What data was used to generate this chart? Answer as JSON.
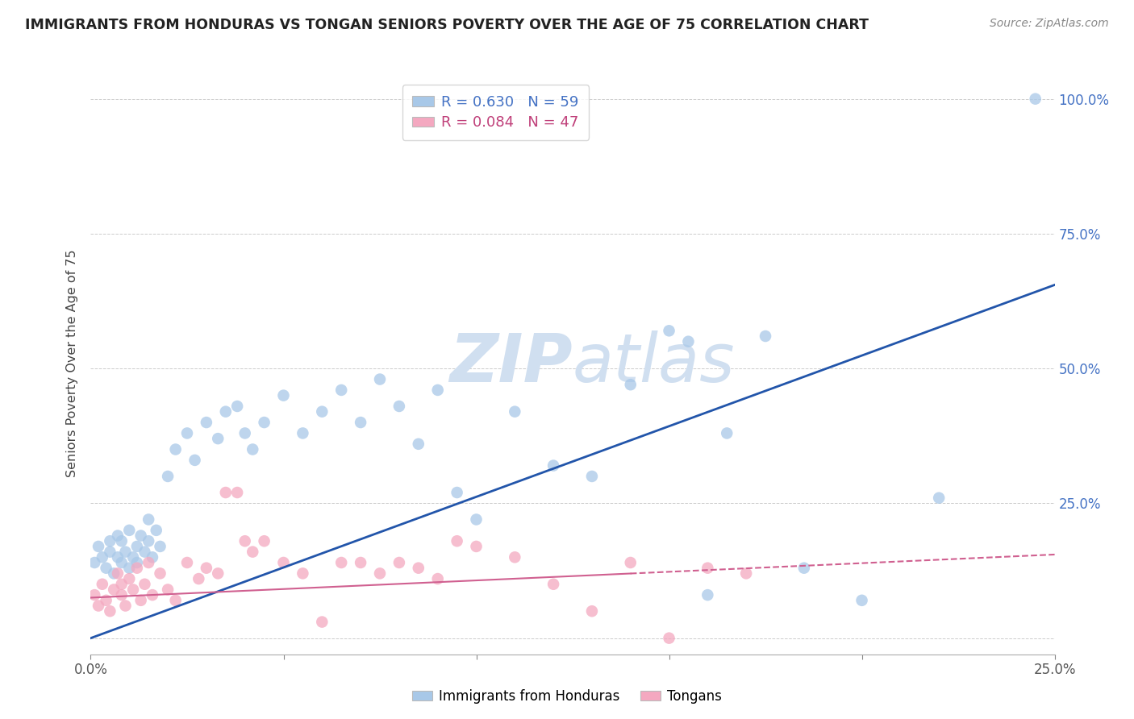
{
  "title": "IMMIGRANTS FROM HONDURAS VS TONGAN SENIORS POVERTY OVER THE AGE OF 75 CORRELATION CHART",
  "source": "Source: ZipAtlas.com",
  "ylabel": "Seniors Poverty Over the Age of 75",
  "xlim": [
    0.0,
    0.25
  ],
  "ylim": [
    -0.03,
    1.05
  ],
  "legend1_label": "Immigrants from Honduras",
  "legend2_label": "Tongans",
  "R1": 0.63,
  "N1": 59,
  "R2": 0.084,
  "N2": 47,
  "blue_color": "#a8c8e8",
  "pink_color": "#f4a8c0",
  "blue_line_color": "#2255aa",
  "pink_line_color": "#d06090",
  "watermark_color": "#d0dff0",
  "blue_line_x0": 0.0,
  "blue_line_y0": 0.0,
  "blue_line_x1": 0.25,
  "blue_line_y1": 0.655,
  "pink_line_x0": 0.0,
  "pink_line_y0": 0.075,
  "pink_line_x1": 0.25,
  "pink_line_y1": 0.155,
  "blue_scatter_x": [
    0.001,
    0.002,
    0.003,
    0.004,
    0.005,
    0.005,
    0.006,
    0.007,
    0.007,
    0.008,
    0.008,
    0.009,
    0.01,
    0.01,
    0.011,
    0.012,
    0.012,
    0.013,
    0.014,
    0.015,
    0.015,
    0.016,
    0.017,
    0.018,
    0.02,
    0.022,
    0.025,
    0.027,
    0.03,
    0.033,
    0.035,
    0.038,
    0.04,
    0.042,
    0.045,
    0.05,
    0.055,
    0.06,
    0.065,
    0.07,
    0.075,
    0.08,
    0.085,
    0.09,
    0.095,
    0.1,
    0.11,
    0.12,
    0.13,
    0.14,
    0.15,
    0.155,
    0.16,
    0.165,
    0.175,
    0.185,
    0.2,
    0.22,
    0.245
  ],
  "blue_scatter_y": [
    0.14,
    0.17,
    0.15,
    0.13,
    0.16,
    0.18,
    0.12,
    0.15,
    0.19,
    0.14,
    0.18,
    0.16,
    0.13,
    0.2,
    0.15,
    0.17,
    0.14,
    0.19,
    0.16,
    0.18,
    0.22,
    0.15,
    0.2,
    0.17,
    0.3,
    0.35,
    0.38,
    0.33,
    0.4,
    0.37,
    0.42,
    0.43,
    0.38,
    0.35,
    0.4,
    0.45,
    0.38,
    0.42,
    0.46,
    0.4,
    0.48,
    0.43,
    0.36,
    0.46,
    0.27,
    0.22,
    0.42,
    0.32,
    0.3,
    0.47,
    0.57,
    0.55,
    0.08,
    0.38,
    0.56,
    0.13,
    0.07,
    0.26,
    1.0
  ],
  "pink_scatter_x": [
    0.001,
    0.002,
    0.003,
    0.004,
    0.005,
    0.006,
    0.007,
    0.008,
    0.008,
    0.009,
    0.01,
    0.011,
    0.012,
    0.013,
    0.014,
    0.015,
    0.016,
    0.018,
    0.02,
    0.022,
    0.025,
    0.028,
    0.03,
    0.033,
    0.035,
    0.038,
    0.04,
    0.042,
    0.045,
    0.05,
    0.055,
    0.06,
    0.065,
    0.07,
    0.075,
    0.08,
    0.085,
    0.09,
    0.095,
    0.1,
    0.11,
    0.12,
    0.13,
    0.14,
    0.15,
    0.16,
    0.17
  ],
  "pink_scatter_y": [
    0.08,
    0.06,
    0.1,
    0.07,
    0.05,
    0.09,
    0.12,
    0.08,
    0.1,
    0.06,
    0.11,
    0.09,
    0.13,
    0.07,
    0.1,
    0.14,
    0.08,
    0.12,
    0.09,
    0.07,
    0.14,
    0.11,
    0.13,
    0.12,
    0.27,
    0.27,
    0.18,
    0.16,
    0.18,
    0.14,
    0.12,
    0.03,
    0.14,
    0.14,
    0.12,
    0.14,
    0.13,
    0.11,
    0.18,
    0.17,
    0.15,
    0.1,
    0.05,
    0.14,
    0.0,
    0.13,
    0.12
  ]
}
